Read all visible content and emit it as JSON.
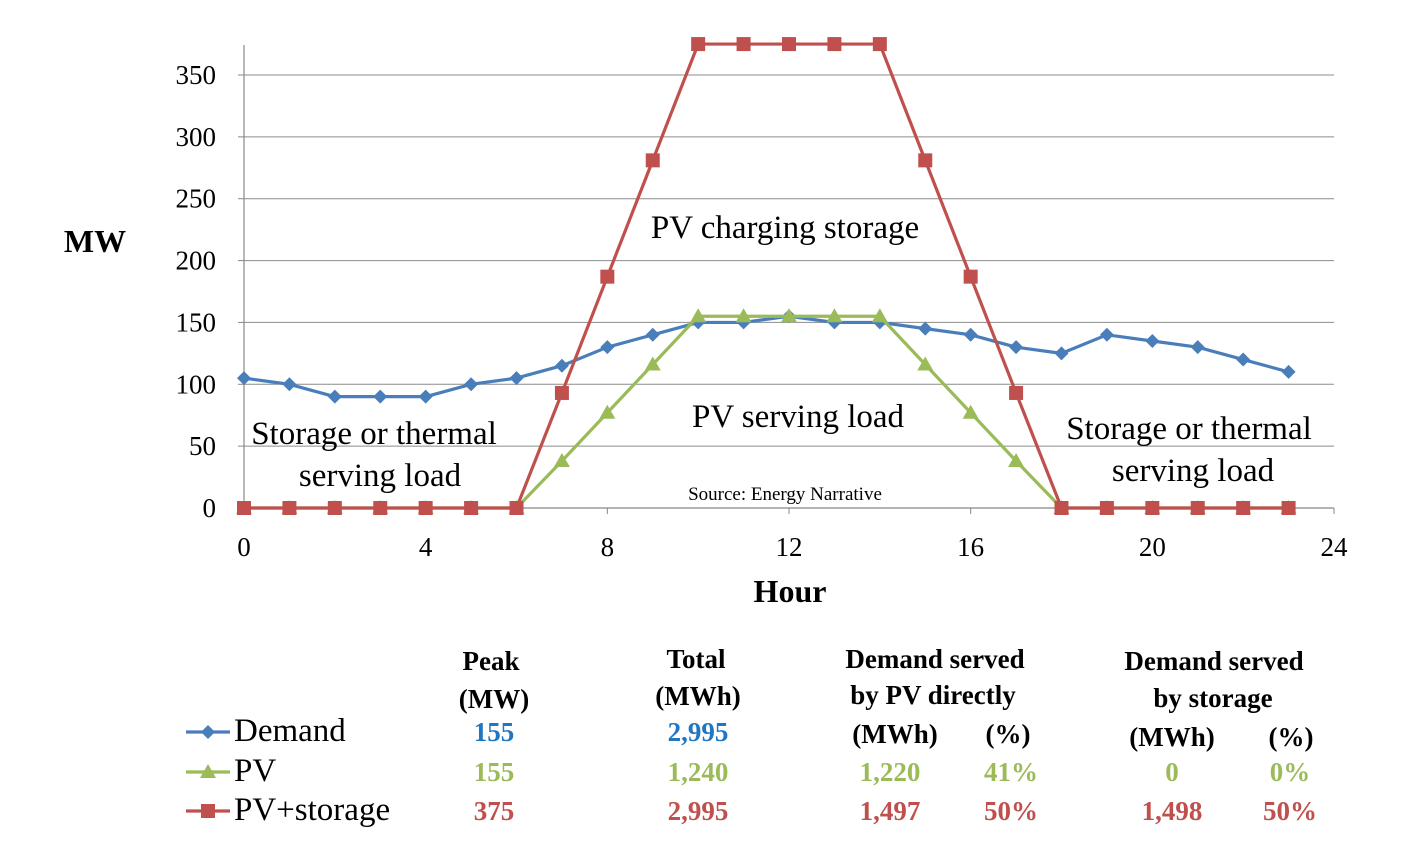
{
  "chart_data": {
    "type": "line",
    "title": "",
    "xlabel": "Hour",
    "ylabel": "MW",
    "xlim": [
      0,
      24
    ],
    "ylim": [
      0,
      350
    ],
    "x_ticks": [
      "0",
      "4",
      "8",
      "12",
      "16",
      "20",
      "24"
    ],
    "y_ticks": [
      "0",
      "50",
      "100",
      "150",
      "200",
      "250",
      "300",
      "350"
    ],
    "grid": true,
    "x": [
      0,
      1,
      2,
      3,
      4,
      5,
      6,
      7,
      8,
      9,
      10,
      11,
      12,
      13,
      14,
      15,
      16,
      17,
      18,
      19,
      20,
      21,
      22,
      23
    ],
    "series": [
      {
        "name": "Demand",
        "color": "#4a7ebb",
        "marker": "diamond",
        "values": [
          105,
          100,
          90,
          90,
          90,
          100,
          105,
          115,
          130,
          140,
          150,
          150,
          155,
          150,
          150,
          145,
          140,
          130,
          125,
          140,
          135,
          130,
          120,
          110
        ]
      },
      {
        "name": "PV",
        "color": "#9bbb59",
        "marker": "triangle",
        "values": [
          0,
          0,
          0,
          0,
          0,
          0,
          0,
          38,
          77,
          116,
          155,
          155,
          155,
          155,
          155,
          116,
          77,
          38,
          0,
          0,
          0,
          0,
          0,
          0
        ]
      },
      {
        "name": "PV+storage",
        "color": "#c0504d",
        "marker": "square",
        "values": [
          0,
          0,
          0,
          0,
          0,
          0,
          0,
          93,
          187,
          281,
          375,
          375,
          375,
          375,
          375,
          281,
          187,
          93,
          0,
          0,
          0,
          0,
          0,
          0
        ]
      }
    ],
    "annotations": {
      "charging": "PV charging storage",
      "serving": "PV serving load",
      "left_line1": "Storage or thermal",
      "left_line2": "serving load",
      "right_line1": "Storage or thermal",
      "right_line2": "serving load",
      "source": "Source: Energy Narrative"
    }
  },
  "table": {
    "headers": {
      "peak_1": "Peak",
      "peak_2": "(MW)",
      "total_1": "Total",
      "total_2": "(MWh)",
      "pv_1": "Demand served",
      "pv_2": "by PV directly",
      "pv_mwh": "(MWh)",
      "pv_pct": "(%)",
      "st_1": "Demand served",
      "st_2": "by storage",
      "st_mwh": "(MWh)",
      "st_pct": "(%)"
    },
    "rows": [
      {
        "label": "Demand",
        "color": "#1f77c4",
        "peak": "155",
        "total": "2,995",
        "pv_mwh": "",
        "pv_pct": "",
        "st_mwh": "",
        "st_pct": ""
      },
      {
        "label": "PV",
        "color": "#9bbb59",
        "peak": "155",
        "total": "1,240",
        "pv_mwh": "1,220",
        "pv_pct": "41%",
        "st_mwh": "0",
        "st_pct": "0%"
      },
      {
        "label": "PV+storage",
        "color": "#c0504d",
        "peak": "375",
        "total": "2,995",
        "pv_mwh": "1,497",
        "pv_pct": "50%",
        "st_mwh": "1,498",
        "st_pct": "50%"
      }
    ]
  }
}
